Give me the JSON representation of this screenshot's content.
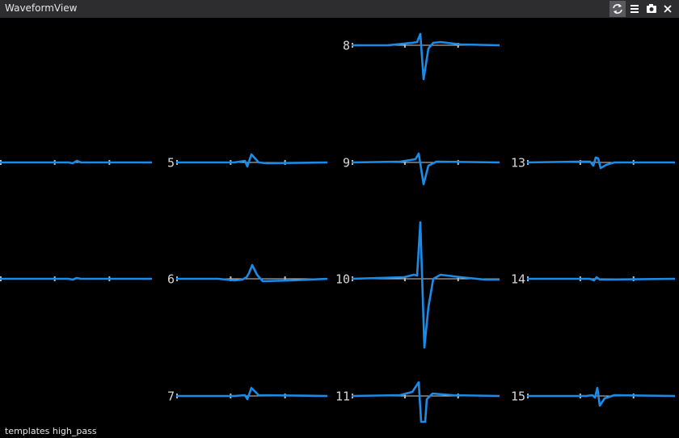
{
  "title_bar": {
    "title": "WaveformView"
  },
  "channels": [
    {
      "label": "8"
    },
    {
      "label": "5"
    },
    {
      "label": "9"
    },
    {
      "label": "13"
    },
    {
      "label": "6"
    },
    {
      "label": "10"
    },
    {
      "label": "14"
    },
    {
      "label": "7"
    },
    {
      "label": "11"
    },
    {
      "label": "15"
    }
  ],
  "footer": "templates high_pass"
}
